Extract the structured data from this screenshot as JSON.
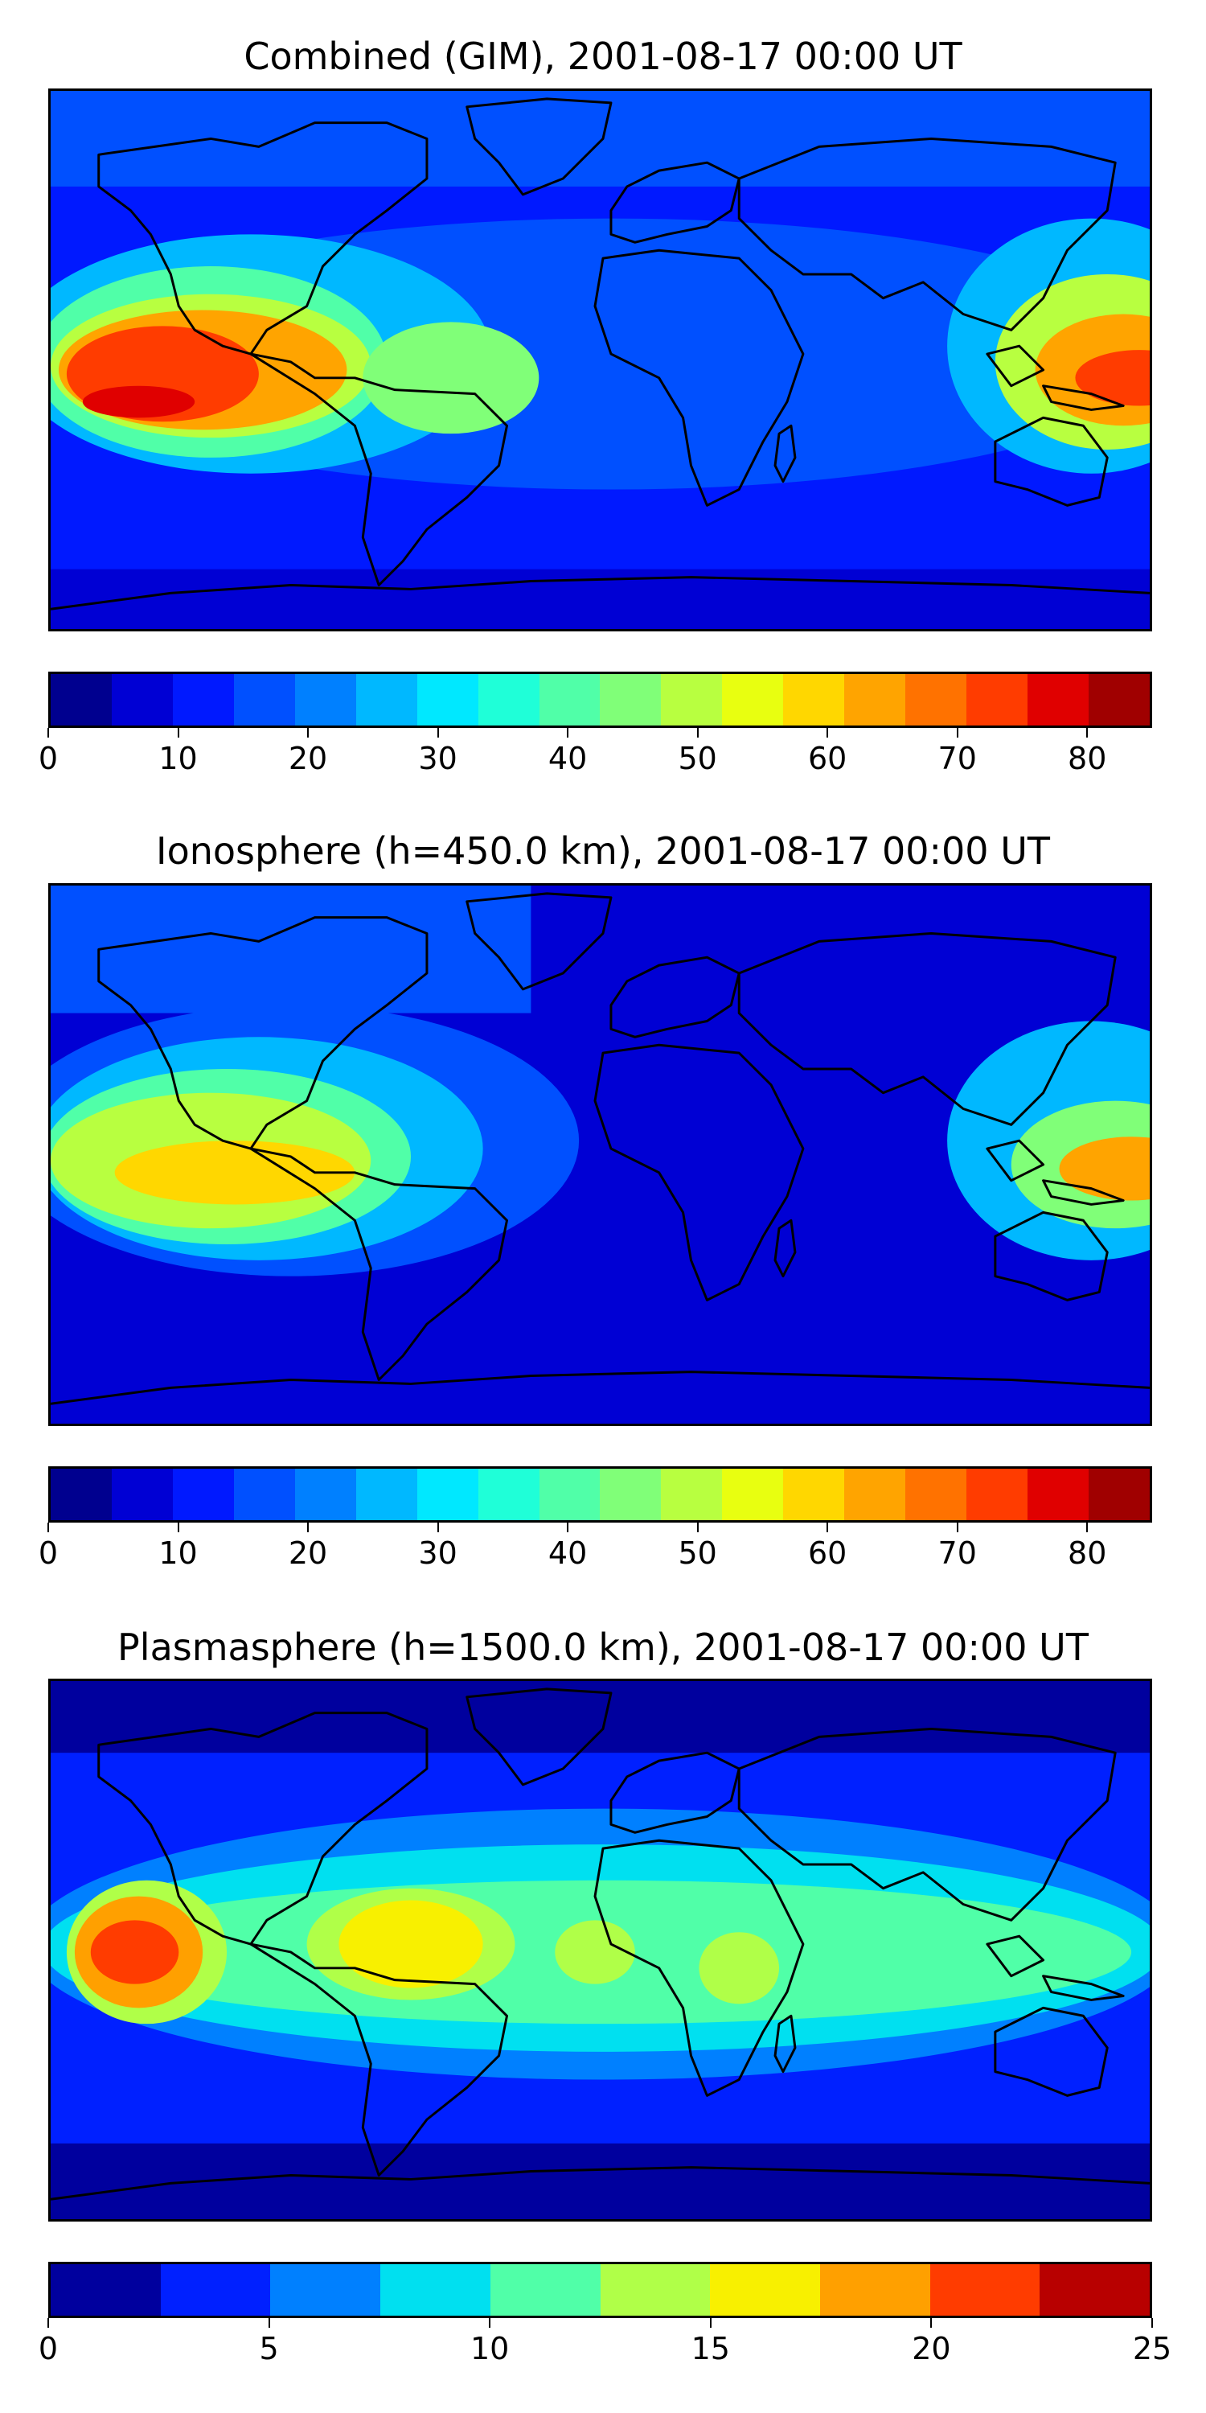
{
  "panels": [
    {
      "title": "Combined (GIM), 2001-08-17 00:00 UT",
      "colorbar": {
        "min": 0,
        "max": 85,
        "step": 5,
        "tick_labels": [
          "0",
          "10",
          "20",
          "30",
          "40",
          "50",
          "60",
          "70",
          "80"
        ],
        "tick_values": [
          0,
          10,
          20,
          30,
          40,
          50,
          60,
          70,
          80
        ],
        "colors": [
          "#00008f",
          "#0000d4",
          "#0019ff",
          "#0050ff",
          "#0080ff",
          "#00b8ff",
          "#00e8ff",
          "#1fffd8",
          "#50ffa8",
          "#80ff78",
          "#b8ff40",
          "#e8ff10",
          "#ffd700",
          "#ffa400",
          "#ff7200",
          "#ff3c00",
          "#e00000",
          "#a00000"
        ]
      }
    },
    {
      "title": "Ionosphere  (h=450.0 km), 2001-08-17 00:00 UT",
      "colorbar": {
        "min": 0,
        "max": 85,
        "step": 5,
        "tick_labels": [
          "0",
          "10",
          "20",
          "30",
          "40",
          "50",
          "60",
          "70",
          "80"
        ],
        "tick_values": [
          0,
          10,
          20,
          30,
          40,
          50,
          60,
          70,
          80
        ],
        "colors": [
          "#00008f",
          "#0000d4",
          "#0019ff",
          "#0050ff",
          "#0080ff",
          "#00b8ff",
          "#00e8ff",
          "#1fffd8",
          "#50ffa8",
          "#80ff78",
          "#b8ff40",
          "#e8ff10",
          "#ffd700",
          "#ffa400",
          "#ff7200",
          "#ff3c00",
          "#e00000",
          "#a00000"
        ]
      }
    },
    {
      "title": "Plasmasphere (h=1500.0 km), 2001-08-17 00:00 UT",
      "colorbar": {
        "min": 0,
        "max": 25,
        "step": 2.5,
        "tick_labels": [
          "0",
          "5",
          "10",
          "15",
          "20",
          "25"
        ],
        "tick_values": [
          0,
          5,
          10,
          15,
          20,
          25
        ],
        "colors": [
          "#00009e",
          "#0020ff",
          "#0080ff",
          "#00e0f0",
          "#50ffa8",
          "#b0ff48",
          "#f8f000",
          "#ffa000",
          "#ff3c00",
          "#b80000"
        ]
      }
    }
  ]
}
